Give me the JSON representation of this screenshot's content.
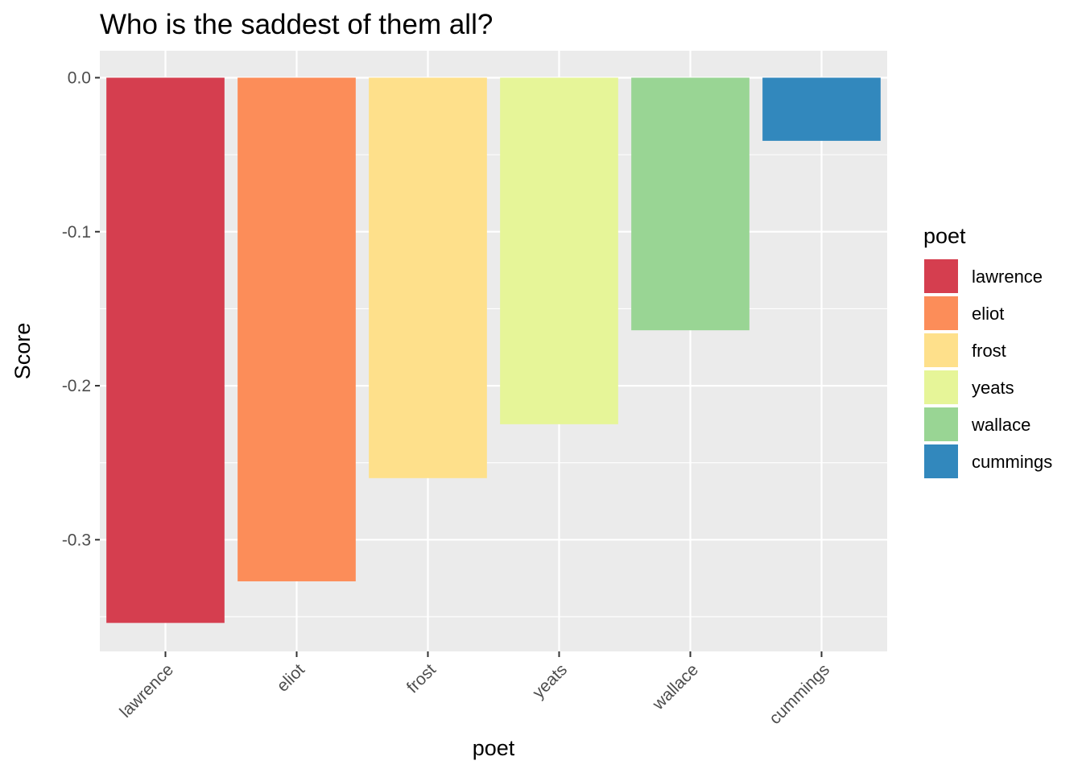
{
  "chart_data": {
    "type": "bar",
    "title": "Who is the saddest of them all?",
    "xlabel": "poet",
    "ylabel": "Score",
    "categories": [
      "lawrence",
      "eliot",
      "frost",
      "yeats",
      "wallace",
      "cummings"
    ],
    "values": [
      -0.354,
      -0.327,
      -0.26,
      -0.225,
      -0.164,
      -0.041
    ],
    "colors": [
      "#d53e4f",
      "#fc8d59",
      "#fee08b",
      "#e6f598",
      "#99d594",
      "#3288bd"
    ],
    "ylim": [
      -0.3725,
      0.0175
    ],
    "yticks": [
      0.0,
      -0.1,
      -0.2,
      -0.3
    ],
    "ytick_labels": [
      "0.0",
      "-0.1",
      "-0.2",
      "-0.3"
    ],
    "xtick_rotation": 45,
    "grid": true,
    "background": "#ebebeb",
    "legend": {
      "title": "poet",
      "placement": "right",
      "entries": [
        "lawrence",
        "eliot",
        "frost",
        "yeats",
        "wallace",
        "cummings"
      ]
    }
  }
}
